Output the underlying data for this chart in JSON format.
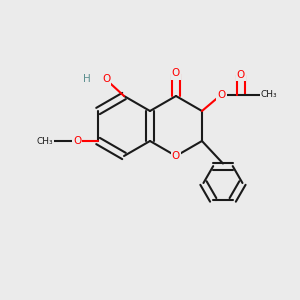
{
  "background_color": "#EBEBEB",
  "bond_color": "#1a1a1a",
  "oxygen_color": "#FF0000",
  "oh_color": "#5B8F8F",
  "figsize": [
    3.0,
    3.0
  ],
  "dpi": 100,
  "atoms": {
    "O_ring": {
      "label": "O",
      "color": "#FF0000"
    },
    "O_ketone": {
      "label": "O",
      "color": "#FF0000"
    },
    "O_acetate1": {
      "label": "O",
      "color": "#FF0000"
    },
    "O_acetate2": {
      "label": "O",
      "color": "#FF0000"
    },
    "O_methoxy": {
      "label": "O",
      "color": "#FF0000"
    },
    "O_hydroxy": {
      "label": "O",
      "color": "#FF0000"
    },
    "H_hydroxy": {
      "label": "H",
      "color": "#5B8F8F"
    }
  }
}
